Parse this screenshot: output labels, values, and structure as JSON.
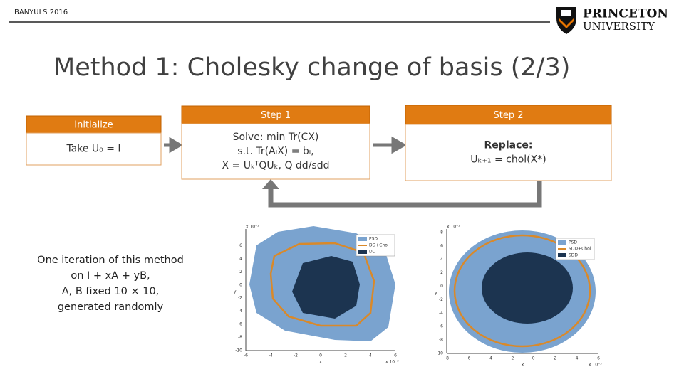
{
  "header": {
    "event": "BANYULS 2016",
    "logo": [
      "PRINCETON",
      "UNIVERSITY"
    ]
  },
  "title": "Method 1: Cholesky change of basis (2/3)",
  "steps": [
    {
      "label": "Initialize",
      "body": [
        "Take U₀ = I"
      ]
    },
    {
      "label": "Step 1",
      "body": [
        "Solve: min Tr(CX)",
        "s.t. Tr(AᵢX) = bᵢ,",
        "X = UₖᵀQUₖ, Q dd/sdd"
      ]
    },
    {
      "label": "Step 2",
      "body": [
        "Replace:",
        "Uₖ₊₁ = chol(X*)"
      ]
    }
  ],
  "note": [
    "One iteration of this method",
    "on I + xA + yB,",
    "A, B fixed 10 × 10,",
    "generated randomly"
  ],
  "plots": [
    {
      "legend": [
        "PSD",
        "DD+Chol",
        "DD"
      ],
      "scale": "x 10⁻³",
      "xlabel": "x",
      "ylabel": "y",
      "yticks": [
        6,
        4,
        2,
        0,
        -2,
        -4,
        -6,
        -8,
        -10
      ],
      "xticks": [
        -6,
        -4,
        -2,
        0,
        2,
        4,
        6
      ]
    },
    {
      "legend": [
        "PSD",
        "SDD+Chol",
        "SDD"
      ],
      "scale": "x 10⁻³",
      "xlabel": "x",
      "ylabel": "y",
      "yticks": [
        8,
        6,
        4,
        2,
        0,
        -2,
        -4,
        -6,
        -8,
        -10
      ],
      "xticks": [
        -8,
        -6,
        -4,
        -2,
        0,
        2,
        4,
        6
      ]
    }
  ]
}
